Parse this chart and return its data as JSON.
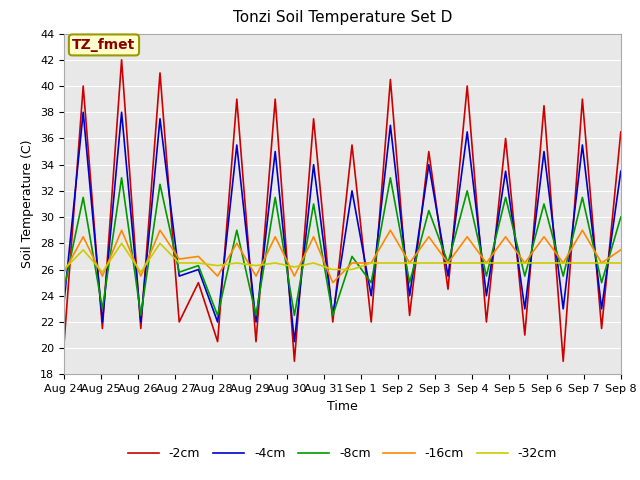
{
  "title": "Tonzi Soil Temperature Set D",
  "xlabel": "Time",
  "ylabel": "Soil Temperature (C)",
  "ylim": [
    18,
    44
  ],
  "xtick_labels": [
    "Aug 24",
    "Aug 25",
    "Aug 26",
    "Aug 27",
    "Aug 28",
    "Aug 29",
    "Aug 30",
    "Aug 31",
    "Sep 1",
    "Sep 2",
    "Sep 3",
    "Sep 4",
    "Sep 5",
    "Sep 6",
    "Sep 7",
    "Sep 8"
  ],
  "legend_labels": [
    "-2cm",
    "-4cm",
    "-8cm",
    "-16cm",
    "-32cm"
  ],
  "line_colors": [
    "#cc0000",
    "#0000cc",
    "#009900",
    "#ff8800",
    "#cccc00"
  ],
  "annotation_text": "TZ_fmet",
  "annotation_bg": "#ffffcc",
  "annotation_border": "#999900",
  "fig_bg": "#ffffff",
  "plot_bg": "#e8e8e8",
  "grid_color": "#ffffff",
  "title_fontsize": 11,
  "axis_fontsize": 9,
  "tick_fontsize": 8,
  "legend_fontsize": 9,
  "series_2cm": [
    20.3,
    40.0,
    21.5,
    42.0,
    21.5,
    41.0,
    22.0,
    25.0,
    20.5,
    39.0,
    20.5,
    39.0,
    19.0,
    37.5,
    22.0,
    35.5,
    22.0,
    40.5,
    22.5,
    35.0,
    24.5,
    40.0,
    22.0,
    36.0,
    21.0,
    38.5,
    19.0,
    39.0,
    21.5,
    36.5
  ],
  "series_4cm": [
    23.5,
    38.0,
    22.0,
    38.0,
    22.0,
    37.5,
    25.5,
    26.0,
    22.0,
    35.5,
    22.0,
    35.0,
    20.5,
    34.0,
    22.5,
    32.0,
    24.0,
    37.0,
    24.0,
    34.0,
    25.5,
    36.5,
    24.0,
    33.5,
    23.0,
    35.0,
    23.0,
    35.5,
    23.0,
    33.5
  ],
  "series_8cm": [
    24.5,
    31.5,
    23.0,
    33.0,
    22.5,
    32.5,
    25.8,
    26.3,
    22.5,
    29.0,
    22.5,
    31.5,
    22.5,
    31.0,
    22.5,
    27.0,
    25.0,
    33.0,
    25.0,
    30.5,
    26.5,
    32.0,
    25.5,
    31.5,
    25.5,
    31.0,
    25.5,
    31.5,
    25.0,
    30.0
  ],
  "series_16cm": [
    25.8,
    28.5,
    25.5,
    29.0,
    25.5,
    29.0,
    26.8,
    27.0,
    25.5,
    28.0,
    25.5,
    28.5,
    25.5,
    28.5,
    25.0,
    26.5,
    26.5,
    29.0,
    26.5,
    28.5,
    26.5,
    28.5,
    26.5,
    28.5,
    26.5,
    28.5,
    26.5,
    29.0,
    26.5,
    27.5
  ],
  "series_32cm": [
    26.0,
    27.5,
    25.8,
    28.0,
    25.8,
    28.0,
    26.5,
    26.5,
    26.3,
    26.5,
    26.3,
    26.5,
    26.2,
    26.5,
    26.0,
    26.0,
    26.5,
    26.5,
    26.5,
    26.5,
    26.5,
    26.5,
    26.5,
    26.5,
    26.5,
    26.5,
    26.5,
    26.5,
    26.5,
    26.5
  ]
}
